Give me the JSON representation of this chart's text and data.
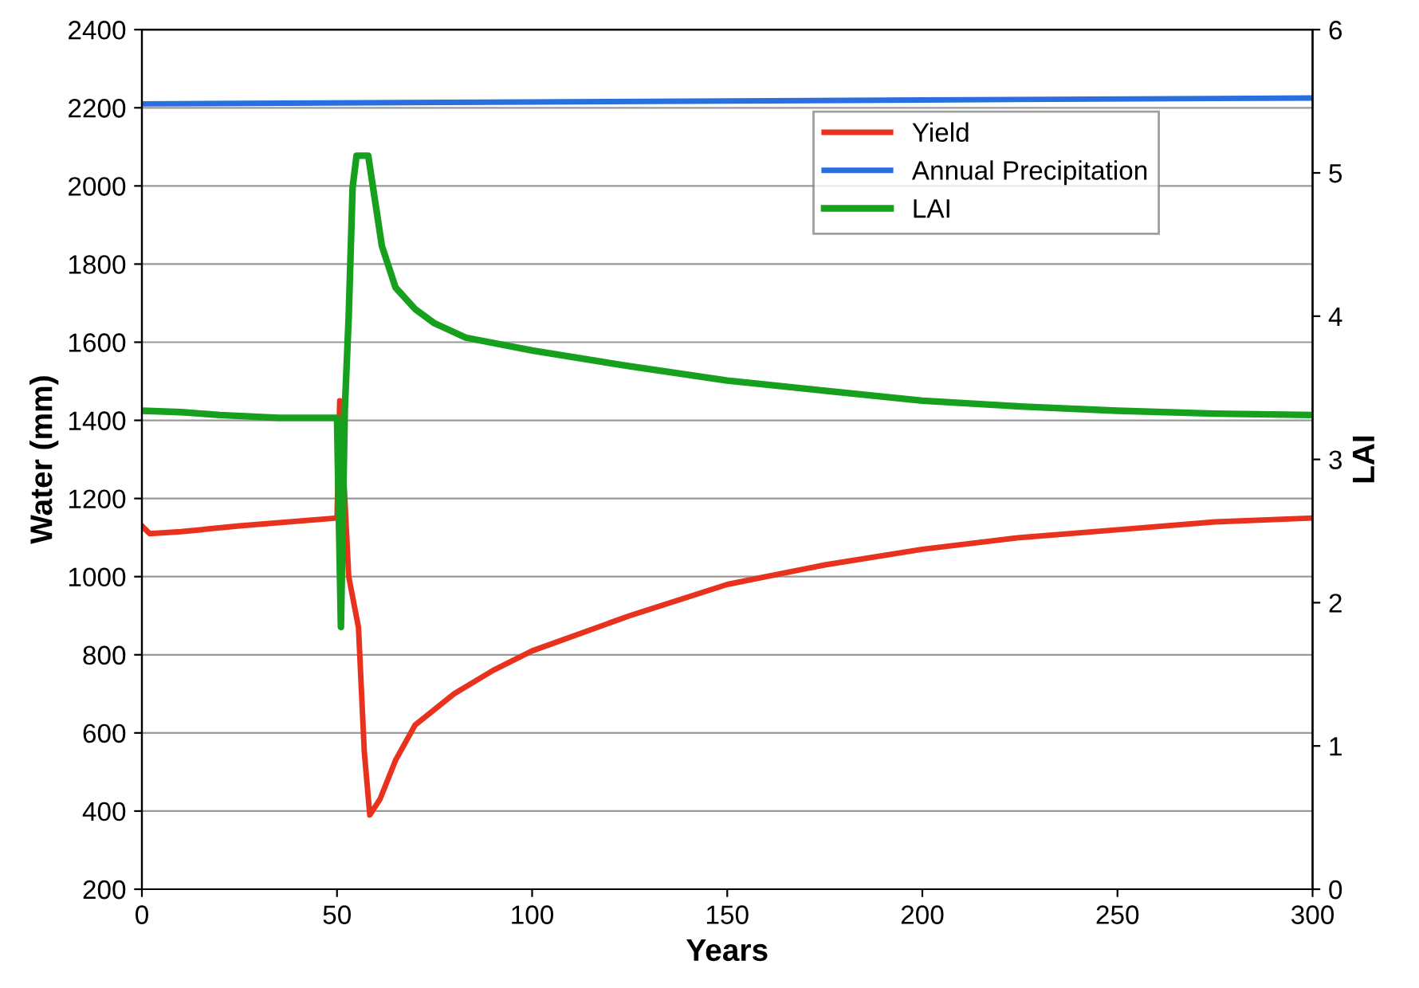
{
  "chart_data": {
    "type": "line",
    "xlabel": "Years",
    "ylabel": "Water (mm)",
    "y2label": "LAI",
    "xlim": [
      0,
      300
    ],
    "xticks": [
      0,
      50,
      100,
      150,
      200,
      250,
      300
    ],
    "ylim": [
      200,
      2400
    ],
    "yticks": [
      200,
      400,
      600,
      800,
      1000,
      1200,
      1400,
      1600,
      1800,
      2000,
      2200,
      2400
    ],
    "y2lim": [
      0,
      6
    ],
    "y2ticks": [
      0,
      1,
      2,
      3,
      4,
      5,
      6
    ],
    "grid": "y",
    "legend": "top right",
    "marker": "none",
    "line_style": "solid",
    "series": [
      {
        "name": "Yield",
        "color": "#e8321e",
        "x": [
          0,
          2,
          10,
          25,
          50,
          50.7,
          52,
          53,
          55.5,
          57,
          58.4,
          61,
          65,
          70,
          80,
          90,
          100,
          125,
          150,
          175,
          200,
          225,
          250,
          275,
          300
        ],
        "values": [
          1130,
          1110,
          1115,
          1130,
          1150,
          1450,
          1200,
          1000,
          870,
          550,
          390,
          430,
          530,
          620,
          700,
          760,
          810,
          900,
          980,
          1030,
          1070,
          1100,
          1120,
          1140,
          1150
        ]
      },
      {
        "name": "Annual Precipitation",
        "color": "#2a6fe0",
        "x": [
          0,
          100,
          200,
          300
        ],
        "values": [
          2210,
          2215,
          2220,
          2225
        ]
      },
      {
        "name": "LAI",
        "color": "#16a01e",
        "axis": "y2",
        "x": [
          0,
          10,
          20,
          35,
          50,
          51,
          52,
          53,
          54,
          55,
          58,
          61.5,
          65,
          70,
          75,
          83,
          100,
          125,
          150,
          175,
          200,
          225,
          250,
          275,
          300
        ],
        "values": [
          3.34,
          3.33,
          3.31,
          3.29,
          3.29,
          1.83,
          3.35,
          4.0,
          4.9,
          5.12,
          5.12,
          4.49,
          4.2,
          4.05,
          3.95,
          3.85,
          3.76,
          3.65,
          3.55,
          3.48,
          3.41,
          3.37,
          3.34,
          3.32,
          3.31
        ]
      }
    ]
  }
}
